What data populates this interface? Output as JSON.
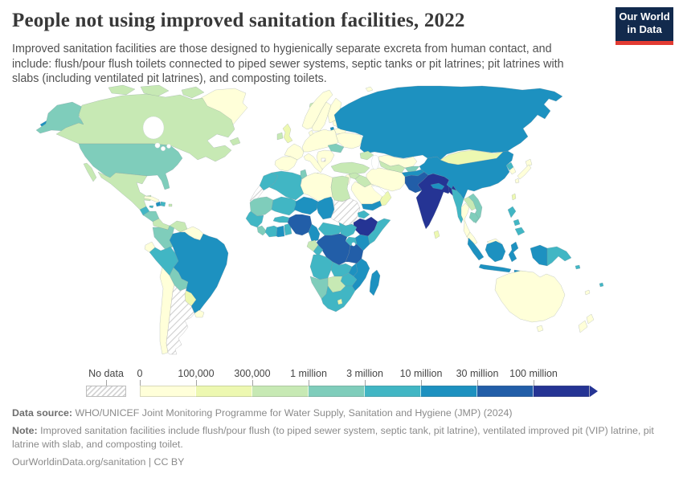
{
  "header": {
    "title": "People not using improved sanitation facilities, 2022",
    "subtitle": "Improved sanitation facilities are those designed to hygienically separate excreta from human contact, and include: flush/pour flush toilets connected to piped sewer systems, septic tanks or pit latrines; pit latrines with slabs (including ventilated pit latrines), and composting toilets."
  },
  "logo": {
    "line1": "Our World",
    "line2": "in Data",
    "bg": "#122a4d",
    "accent": "#e23b32"
  },
  "chart_data": {
    "type": "choropleth_map",
    "title": "People not using improved sanitation facilities",
    "year": "2022",
    "metric": "Number of people not using improved sanitation facilities",
    "no_data_label": "No data",
    "legend_position": "bottom",
    "bins": [
      {
        "label": "0",
        "color": "#ffffd9"
      },
      {
        "label": "100,000",
        "color": "#edf8b1"
      },
      {
        "label": "300,000",
        "color": "#c7e9b4"
      },
      {
        "label": "1 million",
        "color": "#7fcdbb"
      },
      {
        "label": "3 million",
        "color": "#41b6c4"
      },
      {
        "label": "10 million",
        "color": "#1d91c0"
      },
      {
        "label": "30 million",
        "color": "#225ea8"
      },
      {
        "label": "100 million",
        "color": "#253494"
      }
    ],
    "regions": {
      "greenland": 0,
      "iceland": 2,
      "arctic-canada": 2,
      "canada": 2,
      "alaska": 3,
      "russia-chukotka": 5,
      "united-states": 3,
      "mexico": 2,
      "guatemala": 4,
      "honduras-nicaragua": 3,
      "costa-rica-panama": 2,
      "cuba": 0,
      "jamaica": 4,
      "haiti": 5,
      "dominican-republic": 4,
      "puerto-rico": 2,
      "colombia": 3,
      "venezuela": 2,
      "guyanas": 0,
      "ecuador": 0,
      "peru": 4,
      "brazil": 5,
      "bolivia": 3,
      "paraguay": 1,
      "chile": 0,
      "argentina": "no-data",
      "uruguay": 0,
      "norway": 0,
      "sweden": 0,
      "finland": 0,
      "denmark": 0,
      "baltics": 0,
      "belarus": 0,
      "kaliningrad": 5,
      "ukraine": 0,
      "central-europe": 0,
      "france": 0,
      "iberia": 0,
      "uk": 1,
      "ireland": 2,
      "italy": 0,
      "balkans": 0,
      "kosovo": "no-data",
      "romania": 3,
      "russia": 5,
      "kazakhstan": 0,
      "caucasus": 2,
      "turkey": 2,
      "syria": 2,
      "levant": 0,
      "iraq": 2,
      "saudi-arabia": 0,
      "yemen": 5,
      "oman": 1,
      "iran": 0,
      "central-asia": 2,
      "kyrgyzstan-tajikistan": 3,
      "afghanistan": 5,
      "pakistan": 6,
      "india": 7,
      "nepal": 5,
      "bangladesh": 7,
      "sri-lanka": 1,
      "china": 5,
      "mongolia": 1,
      "north-korea": 4,
      "south-korea": 0,
      "japan": 0,
      "taiwan": 1,
      "myanmar": 4,
      "laos": 2,
      "vietnam": 3,
      "cambodia": 3,
      "thailand": 0,
      "malaysia": 0,
      "indonesia": 5,
      "papua-new-guinea": 4,
      "philippines": 4,
      "solomon-islands": 4,
      "fiji": 4,
      "new-caledonia": 0,
      "australia": 0,
      "new-zealand": 0,
      "morocco": 4,
      "western-sahara": "no-data",
      "algeria": 4,
      "tunisia": 3,
      "libya": 0,
      "egypt": 2,
      "mauritania": 3,
      "mali": 4,
      "senegal-region": 4,
      "sierra-leone-liberia": 3,
      "cote-divoire": 4,
      "ghana": 5,
      "togo-benin": 4,
      "burkina-faso": 4,
      "niger": 5,
      "chad": 5,
      "nigeria": 6,
      "sudan": "no-data",
      "eritrea": 4,
      "ethiopia": 7,
      "somalia": 4,
      "south-sudan": 4,
      "central-african-republic": 4,
      "cameroon": 5,
      "kenya": 5,
      "uganda": 4,
      "drc": 6,
      "gabon": 2,
      "congo": 4,
      "tanzania": 6,
      "angola": 4,
      "zambia": 4,
      "malawi": 5,
      "mozambique": 5,
      "zimbabwe": 4,
      "botswana": 2,
      "namibia": 3,
      "south-africa": 4,
      "lesotho": 1,
      "madagascar": 5,
      "svalbard": 0
    }
  },
  "footer": {
    "source_label": "Data source:",
    "source_text": " WHO/UNICEF Joint Monitoring Programme for Water Supply, Sanitation and Hygiene (JMP) (2024)",
    "note_label": "Note:",
    "note_text": " Improved sanitation facilities include flush/pour flush (to piped sewer system, septic tank, pit latrine), ventilated improved pit (VIP) latrine, pit latrine with slab, and composting toilet.",
    "url": "OurWorldinData.org/sanitation | CC BY"
  }
}
